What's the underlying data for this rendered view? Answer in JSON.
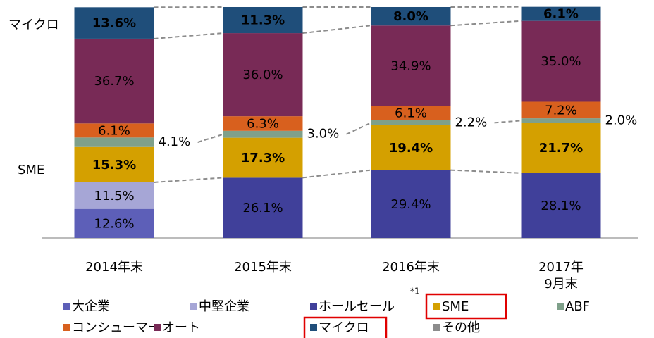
{
  "chart_data": {
    "type": "bar",
    "stacked": true,
    "categories": [
      "2014年末",
      "2015年末",
      "2016年末",
      "2017年\n9月末"
    ],
    "side_labels": [
      "マイクロ",
      "SME"
    ],
    "footnote": "*1",
    "series": [
      {
        "name": "大企業",
        "color": "#5d5fb8",
        "values": [
          12.6,
          null,
          null,
          null
        ],
        "value_labels": [
          "12.6%",
          null,
          null,
          null
        ]
      },
      {
        "name": "中堅企業",
        "color": "#a6a6d6",
        "values": [
          11.5,
          null,
          null,
          null
        ],
        "value_labels": [
          "11.5%",
          null,
          null,
          null
        ]
      },
      {
        "name": "ホールセール",
        "color": "#40409a",
        "values": [
          null,
          26.1,
          29.4,
          28.1
        ],
        "value_labels": [
          null,
          "26.1%",
          "29.4%",
          "28.1%"
        ]
      },
      {
        "name": "SME",
        "color": "#d4a000",
        "values": [
          15.3,
          17.3,
          19.4,
          21.7
        ],
        "value_labels": [
          "15.3%",
          "17.3%",
          "19.4%",
          "21.7%"
        ],
        "label_bold": true
      },
      {
        "name": "ABF",
        "color": "#7fa08a",
        "values": [
          4.1,
          3.0,
          2.2,
          2.0
        ],
        "value_labels": [
          "4.1%",
          "3.0%",
          "2.2%",
          "2.0%"
        ],
        "label_position": "outside"
      },
      {
        "name": "コンシューマー",
        "color": "#d8601e",
        "values": [
          6.1,
          6.3,
          6.1,
          7.2
        ],
        "value_labels": [
          "6.1%",
          "6.3%",
          "6.1%",
          "7.2%"
        ]
      },
      {
        "name": "オート",
        "color": "#782a56",
        "values": [
          36.7,
          36.0,
          34.9,
          35.0
        ],
        "value_labels": [
          "36.7%",
          "36.0%",
          "34.9%",
          "35.0%"
        ]
      },
      {
        "name": "マイクロ",
        "color": "#1f4e7a",
        "values": [
          13.6,
          11.3,
          8.0,
          6.1
        ],
        "value_labels": [
          "13.6%",
          "11.3%",
          "8.0%",
          "6.1%"
        ],
        "label_bold": true
      },
      {
        "name": "その他",
        "color": "#8c8c8c",
        "values": [
          null,
          null,
          null,
          null
        ]
      }
    ]
  }
}
